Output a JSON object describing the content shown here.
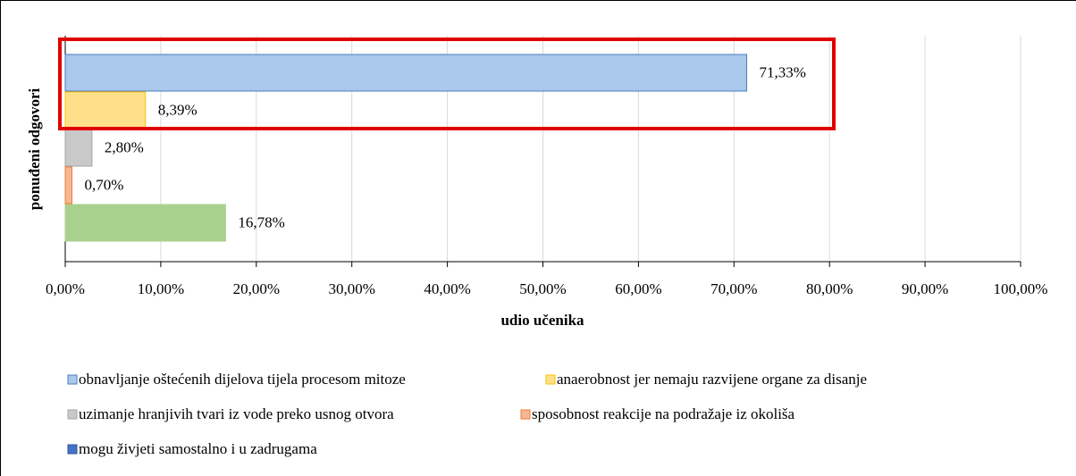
{
  "chart_data": {
    "type": "bar",
    "orientation": "horizontal",
    "y_label": "ponuđeni odgovori",
    "x_label": "udio učenika",
    "annotation": "highlight box around top bar",
    "series": [
      {
        "name": "obnavljanje oštećenih dijelova tijela procesom mitoze",
        "color": "#a9c8ec",
        "border": "#4a7ebb",
        "values": [
          71.33
        ],
        "value_labels": [
          "71,33%"
        ]
      },
      {
        "name": "anaerobnost jer nemaju razvijene organe za disanje",
        "color": "#ffe08a",
        "border": "#ffc000",
        "values": [
          8.39
        ],
        "value_labels": [
          "8,39%"
        ]
      },
      {
        "name": "uzimanje hranjivih tvari iz vode preko usnog otvora",
        "color": "#c9c9c9",
        "border": "#a5a5a5",
        "values": [
          2.8
        ],
        "value_labels": [
          "2,80%"
        ]
      },
      {
        "name": "sposobnost reakcije na podražaje iz okoliša",
        "color": "#f6b894",
        "border": "#ed7d31",
        "values": [
          0.7
        ],
        "value_labels": [
          "0,70%"
        ]
      },
      {
        "name": "mogu živjeti samostalno i u zadrugama",
        "color": "#a9d18e",
        "border": "#a9d18e",
        "legend_color": "#4472c4",
        "values": [
          16.78
        ],
        "value_labels": [
          "16,78%"
        ]
      }
    ],
    "xlim": [
      0,
      100
    ],
    "xticks": [
      {
        "value": 0,
        "label": "0,00%"
      },
      {
        "value": 10,
        "label": "10,00%"
      },
      {
        "value": 20,
        "label": "20,00%"
      },
      {
        "value": 30,
        "label": "30,00%"
      },
      {
        "value": 40,
        "label": "40,00%"
      },
      {
        "value": 50,
        "label": "50,00%"
      },
      {
        "value": 60,
        "label": "60,00%"
      },
      {
        "value": 70,
        "label": "70,00%"
      },
      {
        "value": 80,
        "label": "80,00%"
      },
      {
        "value": 90,
        "label": "90,00%"
      },
      {
        "value": 100,
        "label": "100,00%"
      }
    ],
    "grid": true
  }
}
